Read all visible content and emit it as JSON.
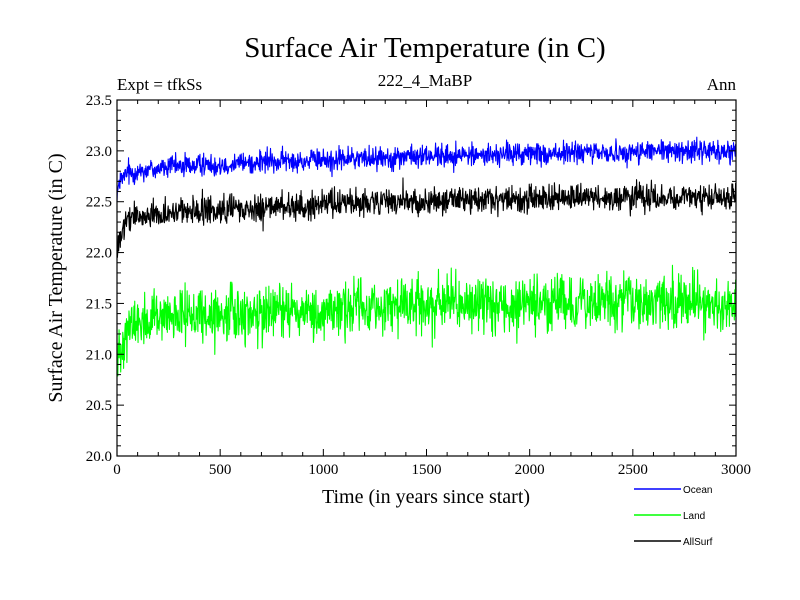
{
  "chart_data": {
    "type": "line",
    "title": "Surface Air Temperature (in C)",
    "subtitle_left": "Expt = tfkSs",
    "subtitle_center": "222_4_MaBP",
    "subtitle_right": "Ann",
    "xlabel": "Time (in years since start)",
    "ylabel": "Surface Air Temperature (in C)",
    "xlim": [
      0,
      3000
    ],
    "ylim": [
      20.0,
      23.5
    ],
    "xticks": [
      0,
      500,
      1000,
      1500,
      2000,
      2500,
      3000
    ],
    "xtick_labels": [
      "0",
      "500",
      "1000",
      "1500",
      "2000",
      "2500",
      "3000"
    ],
    "yticks": [
      20.0,
      20.5,
      21.0,
      21.5,
      22.0,
      22.5,
      23.0,
      23.5
    ],
    "ytick_labels": [
      "20.0",
      "20.5",
      "21.0",
      "21.5",
      "22.0",
      "22.5",
      "23.0",
      "23.5"
    ],
    "grid": false,
    "legend_position": "bottom-right",
    "series": [
      {
        "name": "Ocean",
        "color": "#0000ff",
        "x": [
          0,
          25,
          50,
          100,
          200,
          300,
          400,
          500,
          600,
          700,
          800,
          900,
          1000,
          1100,
          1200,
          1300,
          1400,
          1500,
          1600,
          1700,
          1800,
          1900,
          2000,
          2100,
          2200,
          2300,
          2400,
          2500,
          2600,
          2700,
          2800,
          2900,
          3000
        ],
        "mean": [
          22.6,
          22.72,
          22.78,
          22.8,
          22.83,
          22.85,
          22.86,
          22.87,
          22.88,
          22.89,
          22.9,
          22.9,
          22.91,
          22.92,
          22.93,
          22.94,
          22.94,
          22.95,
          22.95,
          22.96,
          22.96,
          22.97,
          22.97,
          22.97,
          22.98,
          22.98,
          22.98,
          22.99,
          22.99,
          23.0,
          23.0,
          23.0,
          23.0
        ],
        "amplitude": 0.1
      },
      {
        "name": "Land",
        "color": "#00ff00",
        "x": [
          0,
          25,
          50,
          100,
          200,
          300,
          400,
          500,
          600,
          700,
          800,
          900,
          1000,
          1100,
          1200,
          1300,
          1400,
          1500,
          1600,
          1700,
          1800,
          1900,
          2000,
          2100,
          2200,
          2300,
          2400,
          2500,
          2600,
          2700,
          2800,
          2900,
          3000
        ],
        "mean": [
          20.9,
          21.15,
          21.25,
          21.3,
          21.33,
          21.35,
          21.37,
          21.38,
          21.4,
          21.41,
          21.42,
          21.43,
          21.44,
          21.45,
          21.46,
          21.47,
          21.47,
          21.48,
          21.48,
          21.49,
          21.49,
          21.5,
          21.5,
          21.5,
          21.5,
          21.5,
          21.51,
          21.51,
          21.51,
          21.51,
          21.51,
          21.51,
          21.51
        ],
        "amplitude": 0.24
      },
      {
        "name": "AllSurf",
        "color": "#000000",
        "x": [
          0,
          25,
          50,
          100,
          200,
          300,
          400,
          500,
          600,
          700,
          800,
          900,
          1000,
          1100,
          1200,
          1300,
          1400,
          1500,
          1600,
          1700,
          1800,
          1900,
          2000,
          2100,
          2200,
          2300,
          2400,
          2500,
          2600,
          2700,
          2800,
          2900,
          3000
        ],
        "mean": [
          22.0,
          22.2,
          22.3,
          22.35,
          22.38,
          22.4,
          22.41,
          22.42,
          22.43,
          22.44,
          22.45,
          22.46,
          22.47,
          22.48,
          22.49,
          22.5,
          22.5,
          22.51,
          22.51,
          22.52,
          22.52,
          22.53,
          22.53,
          22.53,
          22.53,
          22.54,
          22.54,
          22.54,
          22.54,
          22.54,
          22.54,
          22.54,
          22.55
        ],
        "amplitude": 0.12
      }
    ]
  }
}
